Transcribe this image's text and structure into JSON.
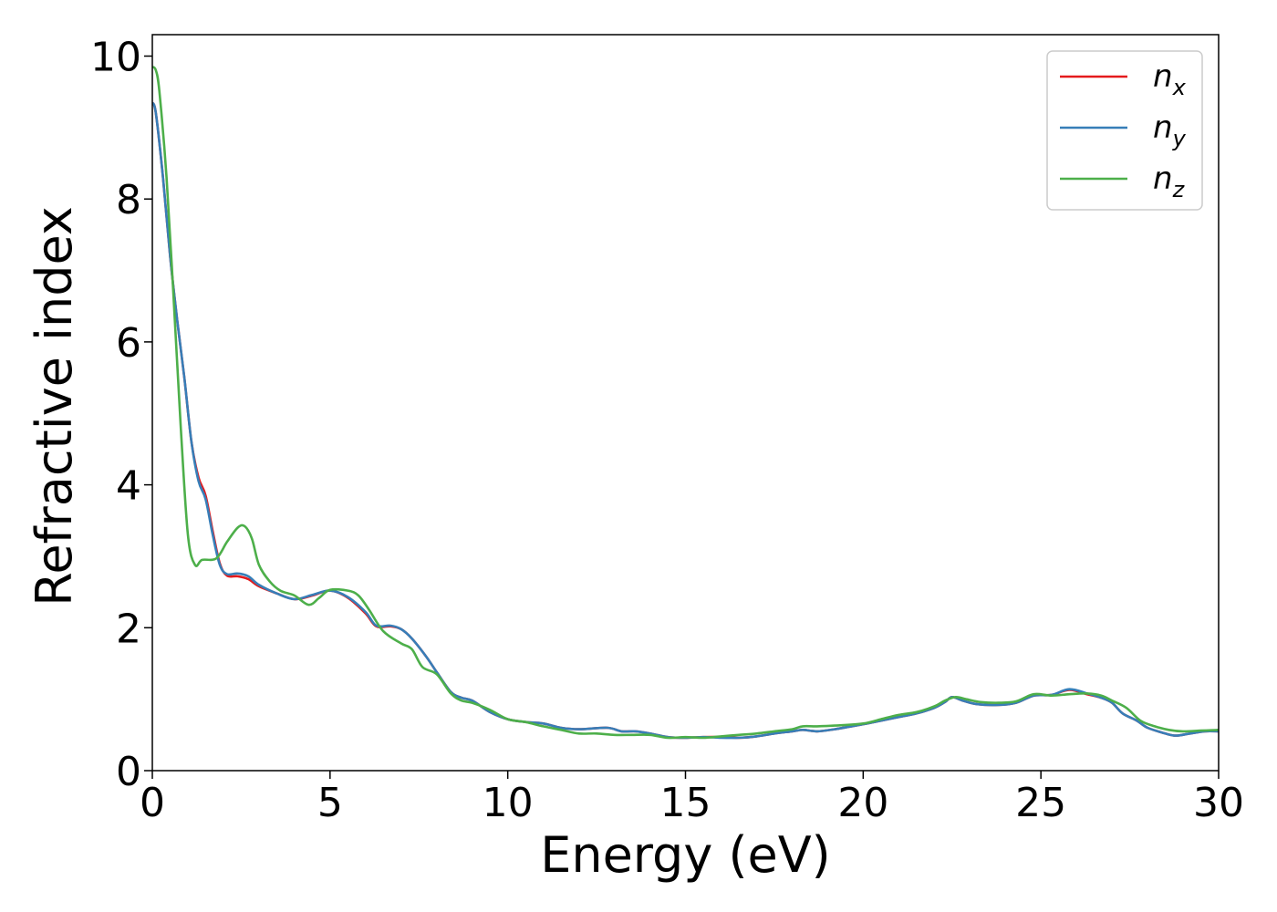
{
  "chart_data": {
    "type": "line",
    "title": "",
    "xlabel": "Energy (eV)",
    "ylabel": "Refractive index",
    "xlim": [
      0,
      30
    ],
    "ylim": [
      0,
      10.3
    ],
    "xticks": [
      0,
      5,
      10,
      15,
      20,
      25,
      30
    ],
    "yticks": [
      0,
      2,
      4,
      6,
      8,
      10
    ],
    "grid": false,
    "legend_position": "top-right",
    "series": [
      {
        "name": "n",
        "subscript": "x",
        "color": "#e41a1c",
        "points": [
          [
            0,
            9.35
          ],
          [
            0.1,
            9.2
          ],
          [
            0.3,
            8.3
          ],
          [
            0.5,
            7.2
          ],
          [
            0.7,
            6.3
          ],
          [
            0.9,
            5.5
          ],
          [
            1.1,
            4.6
          ],
          [
            1.3,
            4.1
          ],
          [
            1.5,
            3.85
          ],
          [
            1.7,
            3.35
          ],
          [
            1.9,
            2.9
          ],
          [
            2.1,
            2.73
          ],
          [
            2.4,
            2.72
          ],
          [
            2.7,
            2.68
          ],
          [
            3.0,
            2.58
          ],
          [
            3.5,
            2.48
          ],
          [
            4.0,
            2.4
          ],
          [
            4.5,
            2.45
          ],
          [
            5.0,
            2.52
          ],
          [
            5.5,
            2.42
          ],
          [
            6.0,
            2.2
          ],
          [
            6.3,
            2.02
          ],
          [
            6.7,
            2.02
          ],
          [
            7.0,
            1.98
          ],
          [
            7.3,
            1.85
          ],
          [
            7.7,
            1.6
          ],
          [
            8.0,
            1.38
          ],
          [
            8.4,
            1.1
          ],
          [
            8.7,
            1.02
          ],
          [
            9.0,
            0.98
          ],
          [
            9.5,
            0.82
          ],
          [
            10.0,
            0.72
          ],
          [
            10.5,
            0.68
          ],
          [
            11.0,
            0.66
          ],
          [
            11.5,
            0.6
          ],
          [
            12.0,
            0.58
          ],
          [
            12.8,
            0.6
          ],
          [
            13.2,
            0.55
          ],
          [
            13.6,
            0.55
          ],
          [
            14.0,
            0.52
          ],
          [
            14.5,
            0.47
          ],
          [
            15.0,
            0.46
          ],
          [
            15.5,
            0.47
          ],
          [
            16.0,
            0.47
          ],
          [
            16.5,
            0.46
          ],
          [
            17.0,
            0.48
          ],
          [
            17.5,
            0.52
          ],
          [
            18.0,
            0.55
          ],
          [
            18.3,
            0.57
          ],
          [
            18.7,
            0.55
          ],
          [
            19.2,
            0.58
          ],
          [
            20.0,
            0.65
          ],
          [
            20.5,
            0.7
          ],
          [
            21.0,
            0.75
          ],
          [
            21.5,
            0.8
          ],
          [
            22.0,
            0.88
          ],
          [
            22.3,
            0.96
          ],
          [
            22.5,
            1.03
          ],
          [
            22.8,
            0.98
          ],
          [
            23.2,
            0.93
          ],
          [
            23.8,
            0.92
          ],
          [
            24.3,
            0.95
          ],
          [
            24.8,
            1.05
          ],
          [
            25.3,
            1.06
          ],
          [
            25.8,
            1.13
          ],
          [
            26.3,
            1.07
          ],
          [
            26.7,
            1.02
          ],
          [
            27.0,
            0.95
          ],
          [
            27.3,
            0.8
          ],
          [
            27.7,
            0.7
          ],
          [
            28.0,
            0.6
          ],
          [
            28.5,
            0.52
          ],
          [
            28.8,
            0.49
          ],
          [
            29.2,
            0.52
          ],
          [
            29.6,
            0.55
          ],
          [
            30.0,
            0.55
          ]
        ]
      },
      {
        "name": "n",
        "subscript": "y",
        "color": "#377eb8",
        "points": [
          [
            0,
            9.35
          ],
          [
            0.1,
            9.2
          ],
          [
            0.3,
            8.3
          ],
          [
            0.5,
            7.2
          ],
          [
            0.7,
            6.3
          ],
          [
            0.9,
            5.5
          ],
          [
            1.1,
            4.6
          ],
          [
            1.3,
            4.05
          ],
          [
            1.5,
            3.8
          ],
          [
            1.7,
            3.3
          ],
          [
            1.9,
            2.88
          ],
          [
            2.1,
            2.75
          ],
          [
            2.4,
            2.76
          ],
          [
            2.7,
            2.72
          ],
          [
            3.0,
            2.6
          ],
          [
            3.5,
            2.48
          ],
          [
            4.0,
            2.4
          ],
          [
            4.5,
            2.46
          ],
          [
            5.0,
            2.52
          ],
          [
            5.5,
            2.43
          ],
          [
            6.0,
            2.22
          ],
          [
            6.3,
            2.03
          ],
          [
            6.7,
            2.03
          ],
          [
            7.0,
            1.98
          ],
          [
            7.3,
            1.85
          ],
          [
            7.7,
            1.6
          ],
          [
            8.0,
            1.38
          ],
          [
            8.4,
            1.1
          ],
          [
            8.7,
            1.02
          ],
          [
            9.0,
            0.98
          ],
          [
            9.5,
            0.82
          ],
          [
            10.0,
            0.72
          ],
          [
            10.5,
            0.68
          ],
          [
            11.0,
            0.66
          ],
          [
            11.5,
            0.6
          ],
          [
            12.0,
            0.58
          ],
          [
            12.8,
            0.6
          ],
          [
            13.2,
            0.55
          ],
          [
            13.6,
            0.55
          ],
          [
            14.0,
            0.52
          ],
          [
            14.5,
            0.47
          ],
          [
            15.0,
            0.46
          ],
          [
            15.5,
            0.47
          ],
          [
            16.0,
            0.46
          ],
          [
            16.5,
            0.46
          ],
          [
            17.0,
            0.48
          ],
          [
            17.5,
            0.52
          ],
          [
            18.0,
            0.55
          ],
          [
            18.3,
            0.57
          ],
          [
            18.7,
            0.55
          ],
          [
            19.2,
            0.58
          ],
          [
            20.0,
            0.65
          ],
          [
            20.5,
            0.7
          ],
          [
            21.0,
            0.75
          ],
          [
            21.5,
            0.8
          ],
          [
            22.0,
            0.88
          ],
          [
            22.3,
            0.96
          ],
          [
            22.5,
            1.03
          ],
          [
            22.8,
            0.98
          ],
          [
            23.2,
            0.93
          ],
          [
            23.8,
            0.92
          ],
          [
            24.3,
            0.95
          ],
          [
            24.8,
            1.05
          ],
          [
            25.3,
            1.06
          ],
          [
            25.8,
            1.14
          ],
          [
            26.3,
            1.08
          ],
          [
            26.7,
            1.02
          ],
          [
            27.0,
            0.95
          ],
          [
            27.3,
            0.8
          ],
          [
            27.7,
            0.7
          ],
          [
            28.0,
            0.6
          ],
          [
            28.5,
            0.52
          ],
          [
            28.8,
            0.49
          ],
          [
            29.2,
            0.52
          ],
          [
            29.6,
            0.55
          ],
          [
            30.0,
            0.55
          ]
        ]
      },
      {
        "name": "n",
        "subscript": "z",
        "color": "#4daf4a",
        "points": [
          [
            0,
            9.85
          ],
          [
            0.1,
            9.8
          ],
          [
            0.2,
            9.5
          ],
          [
            0.4,
            8.3
          ],
          [
            0.6,
            6.6
          ],
          [
            0.8,
            4.8
          ],
          [
            1.0,
            3.3
          ],
          [
            1.2,
            2.88
          ],
          [
            1.4,
            2.95
          ],
          [
            1.8,
            2.97
          ],
          [
            2.1,
            3.2
          ],
          [
            2.4,
            3.4
          ],
          [
            2.6,
            3.42
          ],
          [
            2.8,
            3.25
          ],
          [
            3.0,
            2.88
          ],
          [
            3.3,
            2.65
          ],
          [
            3.6,
            2.52
          ],
          [
            4.0,
            2.45
          ],
          [
            4.4,
            2.32
          ],
          [
            4.7,
            2.42
          ],
          [
            5.0,
            2.53
          ],
          [
            5.5,
            2.52
          ],
          [
            5.8,
            2.45
          ],
          [
            6.1,
            2.25
          ],
          [
            6.5,
            1.95
          ],
          [
            7.0,
            1.78
          ],
          [
            7.3,
            1.7
          ],
          [
            7.6,
            1.45
          ],
          [
            8.0,
            1.35
          ],
          [
            8.4,
            1.08
          ],
          [
            8.7,
            0.98
          ],
          [
            9.0,
            0.95
          ],
          [
            9.5,
            0.85
          ],
          [
            10.0,
            0.72
          ],
          [
            10.5,
            0.68
          ],
          [
            11.0,
            0.62
          ],
          [
            11.5,
            0.57
          ],
          [
            12.0,
            0.52
          ],
          [
            12.5,
            0.52
          ],
          [
            13.0,
            0.5
          ],
          [
            13.5,
            0.5
          ],
          [
            14.0,
            0.5
          ],
          [
            14.5,
            0.46
          ],
          [
            15.0,
            0.47
          ],
          [
            15.5,
            0.46
          ],
          [
            16.0,
            0.48
          ],
          [
            16.5,
            0.5
          ],
          [
            17.0,
            0.52
          ],
          [
            17.5,
            0.55
          ],
          [
            18.0,
            0.58
          ],
          [
            18.3,
            0.62
          ],
          [
            18.7,
            0.62
          ],
          [
            19.2,
            0.63
          ],
          [
            20.0,
            0.66
          ],
          [
            20.5,
            0.72
          ],
          [
            21.0,
            0.78
          ],
          [
            21.5,
            0.82
          ],
          [
            22.0,
            0.9
          ],
          [
            22.3,
            0.98
          ],
          [
            22.6,
            1.03
          ],
          [
            22.9,
            1.0
          ],
          [
            23.3,
            0.96
          ],
          [
            23.8,
            0.95
          ],
          [
            24.3,
            0.97
          ],
          [
            24.8,
            1.07
          ],
          [
            25.3,
            1.05
          ],
          [
            25.8,
            1.07
          ],
          [
            26.3,
            1.08
          ],
          [
            26.7,
            1.05
          ],
          [
            27.0,
            0.98
          ],
          [
            27.4,
            0.88
          ],
          [
            27.8,
            0.7
          ],
          [
            28.2,
            0.62
          ],
          [
            28.6,
            0.57
          ],
          [
            29.0,
            0.55
          ],
          [
            29.5,
            0.56
          ],
          [
            30.0,
            0.57
          ]
        ]
      }
    ]
  }
}
